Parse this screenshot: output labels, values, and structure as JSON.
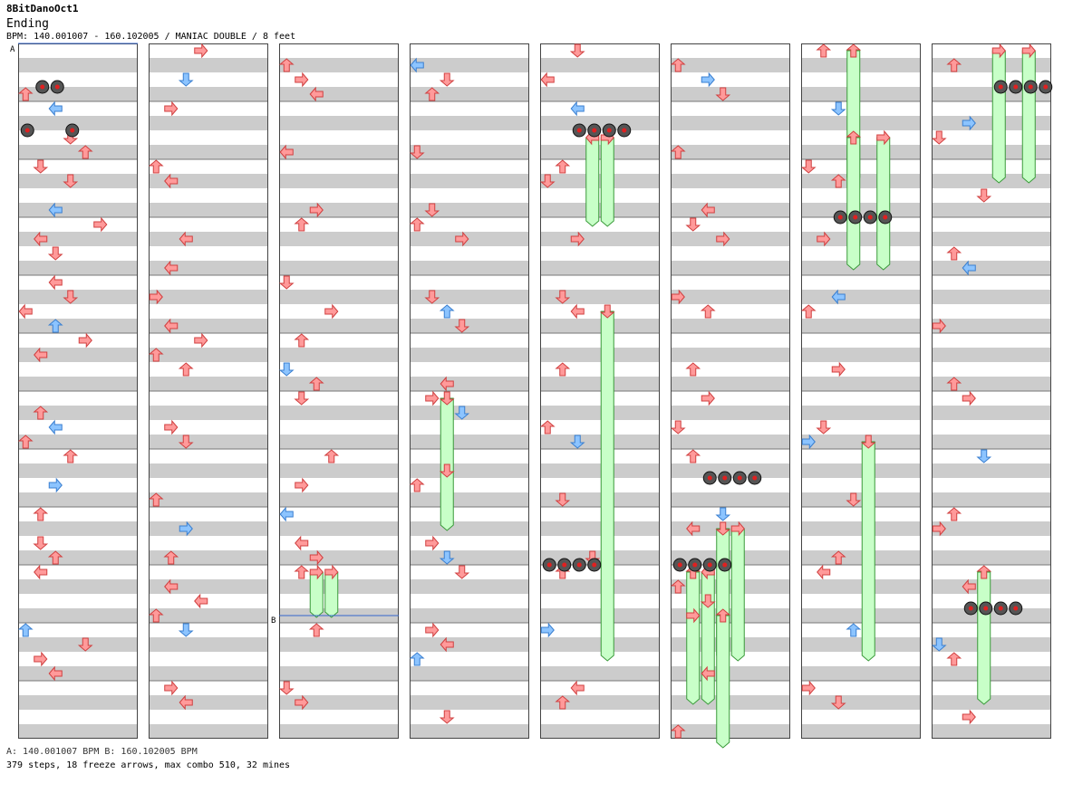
{
  "header": {
    "title": "8BitDanoOct1",
    "difficulty": "Ending",
    "info": "BPM: 140.001007 - 160.102005 / MANIAC DOUBLE / 8 feet"
  },
  "markers": {
    "a": "A",
    "b": "B"
  },
  "footer": {
    "bpm_legend": "A: 140.001007 BPM    B: 160.102005 BPM",
    "stats": "379 steps, 18 freeze arrows, max combo 510, 32 mines"
  },
  "colors": {
    "red_arrow": "#ff9a9a",
    "blue_arrow": "#8cc4ff",
    "freeze": "#c8ffc8",
    "stripe": "#cccccc"
  },
  "icons": [
    "arrow-left-icon",
    "arrow-down-icon",
    "arrow-up-icon",
    "arrow-right-icon",
    "mine-icon"
  ],
  "chart_data": {
    "type": "step-chart",
    "columns": 8,
    "lanes": 8,
    "notes": [
      [
        0,
        1,
        0,
        2
      ],
      [
        0,
        1,
        2,
        4
      ],
      [
        0,
        2,
        1,
        5
      ],
      [
        0,
        2,
        3,
        5
      ],
      [
        0,
        2,
        4,
        2
      ],
      [
        0,
        3,
        2,
        4
      ],
      [
        0,
        3,
        3,
        5
      ],
      [
        0,
        4,
        1,
        0
      ],
      [
        0,
        4,
        2,
        1
      ],
      [
        0,
        4,
        5,
        3
      ],
      [
        0,
        5,
        2,
        4
      ],
      [
        0,
        5,
        3,
        5
      ],
      [
        0,
        6,
        0,
        0
      ],
      [
        0,
        6,
        2,
        2
      ],
      [
        0,
        6,
        4,
        3
      ],
      [
        0,
        7,
        1,
        4
      ],
      [
        0,
        8,
        1,
        6
      ],
      [
        0,
        8,
        2,
        4
      ],
      [
        0,
        9,
        0,
        2
      ],
      [
        0,
        9,
        3,
        6
      ],
      [
        0,
        10,
        1,
        2
      ],
      [
        0,
        10,
        2,
        3
      ],
      [
        0,
        11,
        1,
        5
      ],
      [
        0,
        11,
        2,
        2
      ],
      [
        0,
        12,
        1,
        4
      ],
      [
        0,
        13,
        0,
        2
      ],
      [
        0,
        13,
        4,
        5
      ],
      [
        0,
        14,
        1,
        3
      ],
      [
        0,
        14,
        2,
        4
      ],
      [
        1,
        0,
        2,
        1
      ],
      [
        1,
        0,
        3,
        3
      ],
      [
        1,
        1,
        1,
        3
      ],
      [
        1,
        2,
        0,
        2
      ],
      [
        1,
        3,
        1,
        4
      ],
      [
        1,
        4,
        2,
        0
      ],
      [
        1,
        5,
        0,
        3
      ],
      [
        1,
        5,
        1,
        4
      ],
      [
        1,
        6,
        1,
        0
      ],
      [
        1,
        6,
        3,
        3
      ],
      [
        1,
        7,
        0,
        2
      ],
      [
        1,
        7,
        2,
        2
      ],
      [
        1,
        8,
        1,
        3
      ],
      [
        1,
        9,
        2,
        1
      ],
      [
        1,
        10,
        0,
        2
      ],
      [
        1,
        11,
        1,
        2
      ],
      [
        1,
        11,
        2,
        3
      ],
      [
        1,
        12,
        1,
        0
      ],
      [
        1,
        12,
        3,
        4
      ],
      [
        1,
        13,
        0,
        2
      ],
      [
        1,
        13,
        2,
        1
      ],
      [
        1,
        14,
        1,
        3
      ],
      [
        1,
        15,
        2,
        4
      ],
      [
        2,
        0,
        0,
        2
      ],
      [
        2,
        0,
        1,
        3
      ],
      [
        2,
        1,
        2,
        4
      ],
      [
        2,
        2,
        0,
        4
      ],
      [
        2,
        3,
        2,
        3
      ],
      [
        2,
        4,
        1,
        2
      ],
      [
        2,
        5,
        0,
        5
      ],
      [
        2,
        6,
        1,
        2
      ],
      [
        2,
        6,
        3,
        3
      ],
      [
        2,
        7,
        0,
        1
      ],
      [
        2,
        7,
        2,
        2
      ],
      [
        2,
        8,
        1,
        5
      ],
      [
        2,
        9,
        3,
        2
      ],
      [
        2,
        10,
        0,
        4
      ],
      [
        2,
        10,
        1,
        3
      ],
      [
        2,
        11,
        1,
        0
      ],
      [
        2,
        11,
        2,
        3
      ],
      [
        2,
        12,
        1,
        2
      ],
      [
        2,
        13,
        2,
        2
      ],
      [
        2,
        14,
        0,
        1
      ],
      [
        2,
        15,
        1,
        3
      ],
      [
        3,
        0,
        0,
        0
      ],
      [
        3,
        0,
        2,
        1
      ],
      [
        3,
        1,
        1,
        2
      ],
      [
        3,
        2,
        0,
        5
      ],
      [
        3,
        3,
        1,
        1
      ],
      [
        3,
        4,
        0,
        2
      ],
      [
        3,
        4,
        3,
        3
      ],
      [
        3,
        5,
        1,
        5
      ],
      [
        3,
        6,
        2,
        2
      ],
      [
        3,
        6,
        3,
        5
      ],
      [
        3,
        7,
        2,
        4
      ],
      [
        3,
        8,
        1,
        3
      ],
      [
        3,
        8,
        3,
        5
      ],
      [
        3,
        9,
        2,
        1
      ],
      [
        3,
        10,
        0,
        2
      ],
      [
        3,
        11,
        1,
        3
      ],
      [
        3,
        11,
        2,
        1
      ],
      [
        3,
        12,
        3,
        5
      ],
      [
        3,
        13,
        1,
        3
      ],
      [
        3,
        13,
        2,
        4
      ],
      [
        3,
        14,
        0,
        2
      ],
      [
        3,
        15,
        2,
        1
      ],
      [
        4,
        0,
        0,
        4
      ],
      [
        4,
        0,
        2,
        5
      ],
      [
        4,
        1,
        2,
        4
      ],
      [
        4,
        2,
        1,
        2
      ],
      [
        4,
        3,
        0,
        1
      ],
      [
        4,
        4,
        2,
        3
      ],
      [
        4,
        5,
        1,
        1
      ],
      [
        4,
        6,
        2,
        4
      ],
      [
        4,
        7,
        1,
        2
      ],
      [
        4,
        8,
        0,
        2
      ],
      [
        4,
        9,
        2,
        1
      ],
      [
        4,
        10,
        1,
        5
      ],
      [
        4,
        11,
        3,
        1
      ],
      [
        4,
        12,
        1,
        2
      ],
      [
        4,
        13,
        0,
        3
      ],
      [
        4,
        14,
        2,
        4
      ],
      [
        4,
        15,
        1,
        2
      ],
      [
        5,
        0,
        0,
        2
      ],
      [
        5,
        0,
        2,
        3
      ],
      [
        5,
        1,
        3,
        5
      ],
      [
        5,
        2,
        0,
        2
      ],
      [
        5,
        3,
        2,
        4
      ],
      [
        5,
        4,
        1,
        1
      ],
      [
        5,
        4,
        3,
        3
      ],
      [
        5,
        5,
        0,
        3
      ],
      [
        5,
        6,
        2,
        2
      ],
      [
        5,
        7,
        1,
        2
      ],
      [
        5,
        8,
        0,
        1
      ],
      [
        5,
        8,
        2,
        3
      ],
      [
        5,
        9,
        1,
        2
      ],
      [
        5,
        10,
        3,
        5
      ],
      [
        5,
        11,
        1,
        4
      ],
      [
        5,
        12,
        0,
        2
      ],
      [
        5,
        12,
        2,
        1
      ],
      [
        5,
        13,
        1,
        3
      ],
      [
        5,
        14,
        2,
        4
      ],
      [
        5,
        15,
        0,
        2
      ],
      [
        6,
        0,
        1,
        2
      ],
      [
        6,
        1,
        2,
        1
      ],
      [
        6,
        2,
        0,
        1
      ],
      [
        6,
        3,
        2,
        2
      ],
      [
        6,
        4,
        1,
        3
      ],
      [
        6,
        5,
        2,
        4
      ],
      [
        6,
        6,
        0,
        2
      ],
      [
        6,
        7,
        2,
        3
      ],
      [
        6,
        8,
        1,
        1
      ],
      [
        6,
        9,
        0,
        3
      ],
      [
        6,
        10,
        3,
        5
      ],
      [
        6,
        11,
        2,
        2
      ],
      [
        6,
        12,
        1,
        4
      ],
      [
        6,
        13,
        3,
        2
      ],
      [
        6,
        14,
        0,
        3
      ],
      [
        6,
        15,
        2,
        5
      ],
      [
        7,
        0,
        1,
        2
      ],
      [
        7,
        1,
        2,
        3
      ],
      [
        7,
        2,
        0,
        1
      ],
      [
        7,
        3,
        3,
        5
      ],
      [
        7,
        4,
        1,
        2
      ],
      [
        7,
        5,
        2,
        4
      ],
      [
        7,
        6,
        0,
        3
      ],
      [
        7,
        7,
        1,
        2
      ],
      [
        7,
        8,
        2,
        3
      ],
      [
        7,
        9,
        3,
        5
      ],
      [
        7,
        10,
        1,
        2
      ],
      [
        7,
        11,
        0,
        3
      ],
      [
        7,
        12,
        2,
        4
      ],
      [
        7,
        13,
        0,
        1
      ],
      [
        7,
        14,
        1,
        2
      ],
      [
        7,
        15,
        2,
        3
      ]
    ],
    "freezes": [
      [
        2,
        12,
        2,
        3,
        12,
        13
      ],
      [
        2,
        12,
        3,
        3,
        12,
        13
      ],
      [
        3,
        8,
        2,
        1,
        8,
        11
      ],
      [
        4,
        2,
        3,
        0,
        2,
        4
      ],
      [
        4,
        2,
        4,
        3,
        2,
        4
      ],
      [
        4,
        6,
        4,
        1,
        6,
        14
      ],
      [
        5,
        11,
        3,
        1,
        11,
        14
      ],
      [
        5,
        11,
        4,
        3,
        11,
        14
      ],
      [
        5,
        12,
        1,
        2,
        12,
        15
      ],
      [
        5,
        12,
        2,
        0,
        12,
        15
      ],
      [
        5,
        13,
        3,
        2,
        13,
        16
      ],
      [
        6,
        0,
        3,
        2,
        0,
        3
      ],
      [
        6,
        2,
        3,
        2,
        2,
        5
      ],
      [
        6,
        2,
        5,
        3,
        2,
        5
      ],
      [
        6,
        9,
        4,
        1,
        9,
        14
      ],
      [
        7,
        0,
        4,
        3,
        0,
        3
      ],
      [
        7,
        0,
        6,
        3,
        0,
        3
      ],
      [
        7,
        12,
        3,
        2,
        12,
        15
      ]
    ],
    "mines": [
      [
        0,
        1,
        1
      ],
      [
        0,
        1,
        2
      ],
      [
        0,
        2,
        0
      ],
      [
        0,
        2,
        3
      ],
      [
        4,
        2,
        2
      ],
      [
        4,
        2,
        3
      ],
      [
        4,
        2,
        4
      ],
      [
        4,
        2,
        5
      ],
      [
        5,
        12,
        0
      ],
      [
        5,
        12,
        1
      ],
      [
        5,
        12,
        2
      ],
      [
        5,
        12,
        3
      ],
      [
        5,
        10,
        2
      ],
      [
        5,
        10,
        3
      ],
      [
        5,
        10,
        4
      ],
      [
        5,
        10,
        5
      ],
      [
        4,
        12,
        0
      ],
      [
        4,
        12,
        1
      ],
      [
        4,
        12,
        2
      ],
      [
        4,
        12,
        3
      ],
      [
        6,
        4,
        2
      ],
      [
        6,
        4,
        3
      ],
      [
        6,
        4,
        4
      ],
      [
        6,
        4,
        5
      ],
      [
        7,
        1,
        4
      ],
      [
        7,
        1,
        5
      ],
      [
        7,
        1,
        6
      ],
      [
        7,
        1,
        7
      ],
      [
        7,
        13,
        2
      ],
      [
        7,
        13,
        3
      ],
      [
        7,
        13,
        4
      ],
      [
        7,
        13,
        5
      ]
    ]
  }
}
